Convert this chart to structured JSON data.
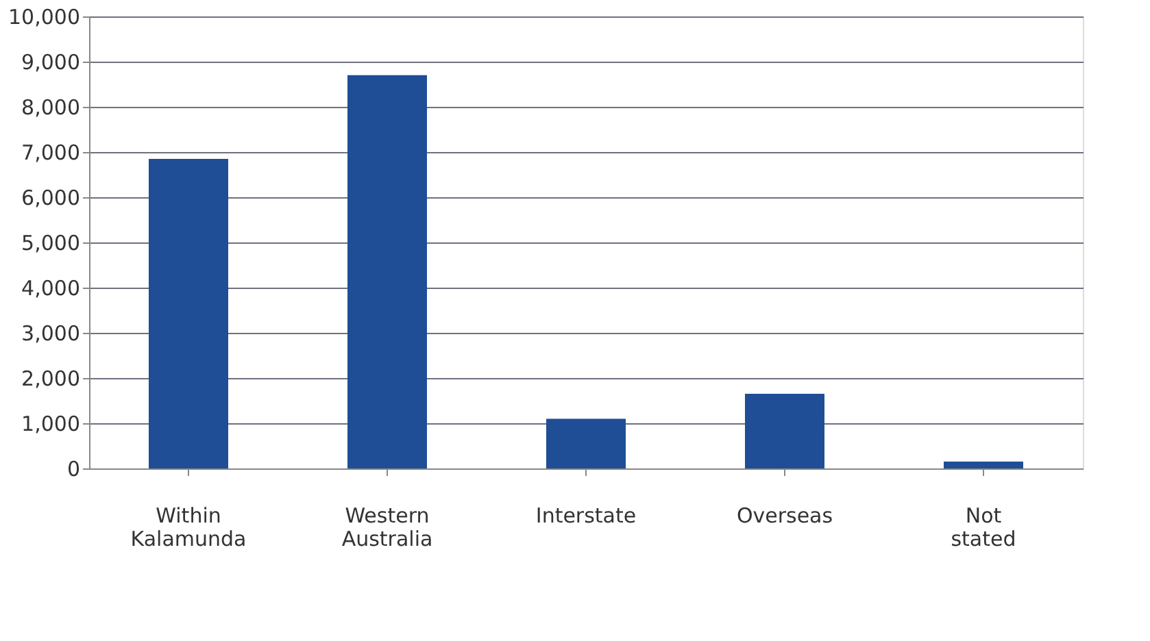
{
  "chart_data": {
    "type": "bar",
    "categories": [
      "Within Kalamunda",
      "Western Australia",
      "Interstate",
      "Overseas",
      "Not stated"
    ],
    "values": [
      6850,
      8700,
      1100,
      1650,
      150
    ],
    "color": "#1f4e96",
    "ylim": [
      0,
      10000
    ],
    "yticks": [
      {
        "value": 0,
        "label": "0"
      },
      {
        "value": 1000,
        "label": "1,000"
      },
      {
        "value": 2000,
        "label": "2,000"
      },
      {
        "value": 3000,
        "label": "3,000"
      },
      {
        "value": 4000,
        "label": "4,000"
      },
      {
        "value": 5000,
        "label": "5,000"
      },
      {
        "value": 6000,
        "label": "6,000"
      },
      {
        "value": 7000,
        "label": "7,000"
      },
      {
        "value": 8000,
        "label": "8,000"
      },
      {
        "value": 9000,
        "label": "9,000"
      },
      {
        "value": 10000,
        "label": "10,000"
      }
    ],
    "grid": "y"
  }
}
